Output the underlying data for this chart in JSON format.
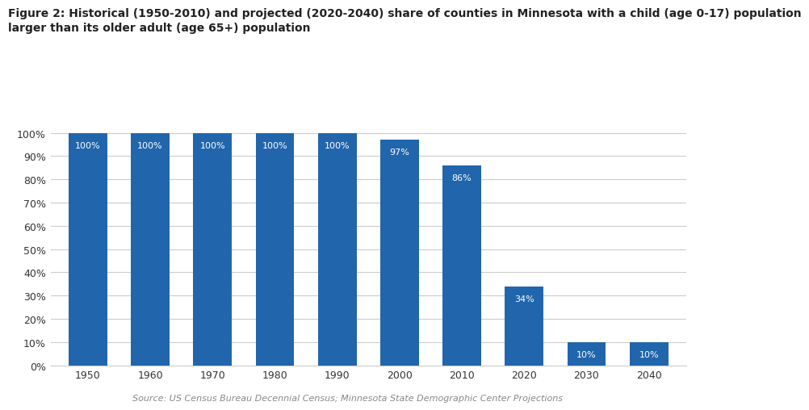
{
  "categories": [
    "1950",
    "1960",
    "1970",
    "1980",
    "1990",
    "2000",
    "2010",
    "2020",
    "2030",
    "2040"
  ],
  "values": [
    100,
    100,
    100,
    100,
    100,
    97,
    86,
    34,
    10,
    10
  ],
  "bar_color": "#2166AC",
  "label_color": "#FFFFFF",
  "label_fontsize": 8,
  "title_line1": "Figure 2: Historical (1950-2010) and projected (2020-2040) share of counties in Minnesota with a child (age 0-17) population",
  "title_line2": "larger than its older adult (age 65+) population",
  "title_fontsize": 10,
  "source": "Source: US Census Bureau Decennial Census; Minnesota State Demographic Center Projections",
  "source_fontsize": 8,
  "ylim": [
    0,
    105
  ],
  "yticks": [
    0,
    10,
    20,
    30,
    40,
    50,
    60,
    70,
    80,
    90,
    100
  ],
  "ytick_labels": [
    "0%",
    "10%",
    "20%",
    "30%",
    "40%",
    "50%",
    "60%",
    "70%",
    "80%",
    "90%",
    "100%"
  ],
  "background_color": "#FFFFFF",
  "grid_color": "#CCCCCC",
  "bar_width": 0.62
}
